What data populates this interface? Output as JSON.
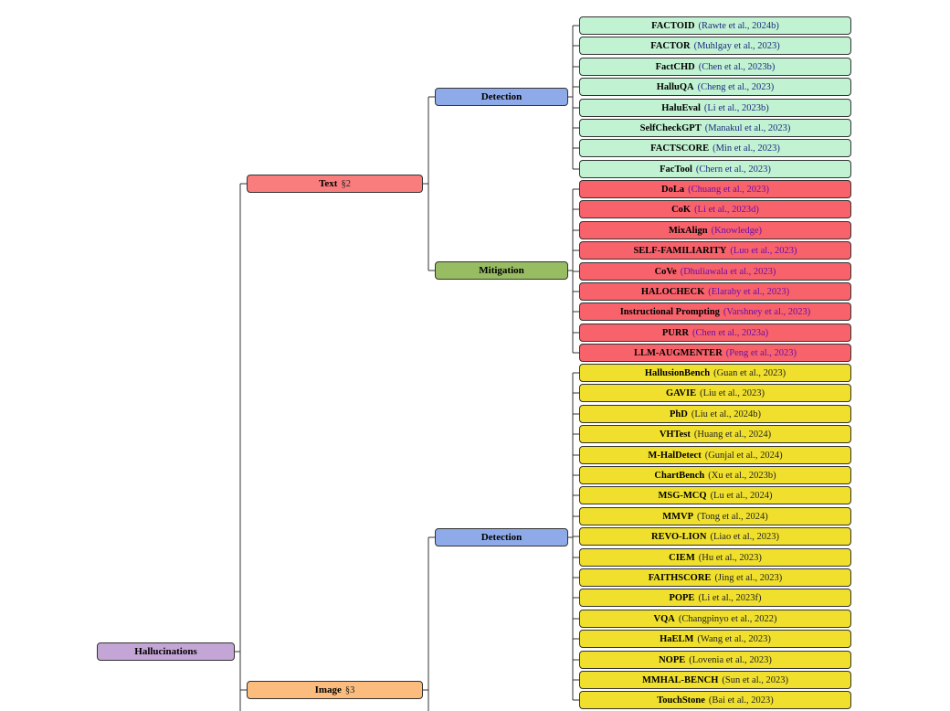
{
  "root": {
    "label": "Hallucinations"
  },
  "text": {
    "label": "Text",
    "section": "§2",
    "detection": {
      "label": "Detection",
      "items": [
        {
          "name": "FACTOID",
          "ref": "(Rawte et al., 2024b)"
        },
        {
          "name": "FACTOR",
          "ref": "(Muhlgay et al., 2023)"
        },
        {
          "name": "FactCHD",
          "ref": "(Chen et al., 2023b)"
        },
        {
          "name": "HalluQA",
          "ref": "(Cheng et al., 2023)"
        },
        {
          "name": "HaluEval",
          "ref": "(Li et al., 2023b)"
        },
        {
          "name": "SelfCheckGPT",
          "ref": "(Manakul et al., 2023)"
        },
        {
          "name": "FACTSCORE",
          "ref": "(Min et al., 2023)"
        },
        {
          "name": "FacTool",
          "ref": "(Chern et al., 2023)"
        }
      ]
    },
    "mitigation": {
      "label": "Mitigation",
      "items": [
        {
          "name": "DoLa",
          "ref": "(Chuang et al., 2023)"
        },
        {
          "name": "CoK",
          "ref": "(Li et al., 2023d)"
        },
        {
          "name": "MixAlign",
          "ref": "(Knowledge)"
        },
        {
          "name": "SELF-FAMILIARITY",
          "ref": "(Luo et al., 2023)"
        },
        {
          "name": "CoVe",
          "ref": "(Dhuliawala et al., 2023)"
        },
        {
          "name": "HALOCHECK",
          "ref": "(Elaraby et al., 2023)"
        },
        {
          "name": "Instructional Prompting",
          "ref": "(Varshney et al., 2023)"
        },
        {
          "name": "PURR",
          "ref": "(Chen et al., 2023a)"
        },
        {
          "name": "LLM-AUGMENTER",
          "ref": "(Peng et al., 2023)"
        }
      ]
    }
  },
  "image": {
    "label": "Image",
    "section": "§3",
    "detection": {
      "label": "Detection",
      "items": [
        {
          "name": "HallusionBench",
          "ref": "(Guan et al., 2023)"
        },
        {
          "name": "GAVIE",
          "ref": "(Liu et al., 2023)"
        },
        {
          "name": "PhD",
          "ref": "(Liu et al., 2024b)"
        },
        {
          "name": "VHTest",
          "ref": "(Huang et al., 2024)"
        },
        {
          "name": "M-HalDetect",
          "ref": "(Gunjal et al., 2024)"
        },
        {
          "name": "ChartBench",
          "ref": "(Xu et al., 2023b)"
        },
        {
          "name": "MSG-MCQ",
          "ref": "(Lu et al., 2024)"
        },
        {
          "name": "MMVP",
          "ref": "(Tong et al., 2024)"
        },
        {
          "name": "REVO-LION",
          "ref": "(Liao et al., 2023)"
        },
        {
          "name": "CIEM",
          "ref": "(Hu et al., 2023)"
        },
        {
          "name": "FAITHSCORE",
          "ref": "(Jing et al., 2023)"
        },
        {
          "name": "POPE",
          "ref": "(Li et al., 2023f)"
        },
        {
          "name": "VQA",
          "ref": "(Changpinyo et al., 2022)"
        },
        {
          "name": "HaELM",
          "ref": "(Wang et al., 2023)"
        },
        {
          "name": "NOPE",
          "ref": "(Lovenia et al., 2023)"
        },
        {
          "name": "MMHAL-BENCH",
          "ref": "(Sun et al., 2023)"
        },
        {
          "name": "TouchStone",
          "ref": "(Bai et al., 2023)"
        }
      ]
    }
  },
  "colors": {
    "root": "#c3a6d6",
    "text": "#fa7d7d",
    "image": "#fbbc7e",
    "detection": "#8eaae8",
    "mitigation": "#97bc62",
    "text_detection_leaf": "#c1f2d2",
    "text_mitigation_leaf": "#f7626b",
    "image_detection_leaf": "#f0e02d"
  }
}
